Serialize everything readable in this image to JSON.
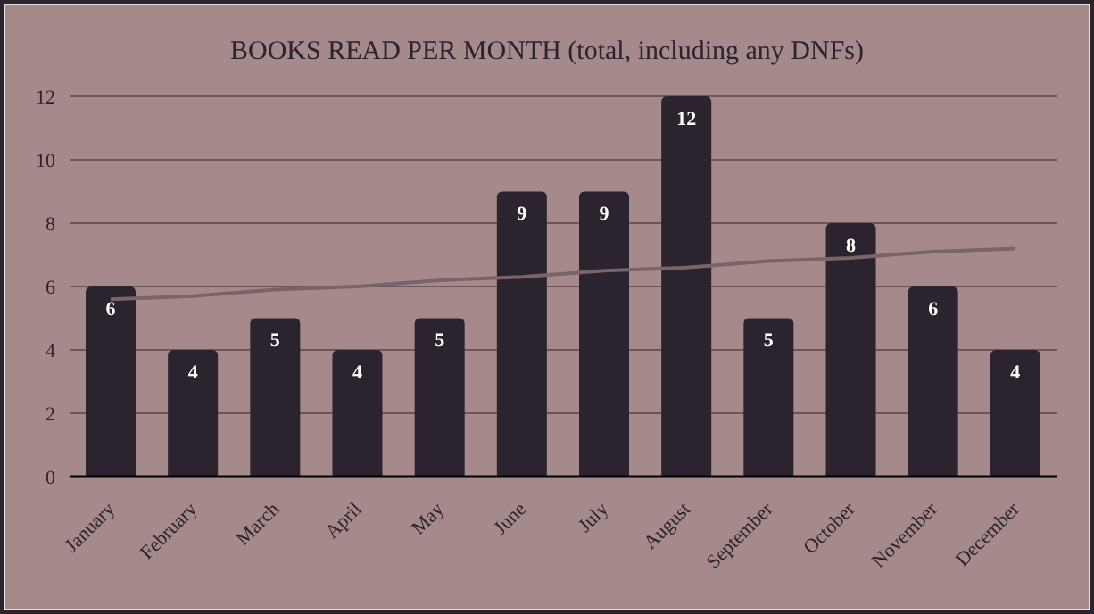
{
  "chart_data": {
    "type": "bar",
    "title": "BOOKS READ PER MONTH (total, including any DNFs)",
    "categories": [
      "January",
      "February",
      "March",
      "April",
      "May",
      "June",
      "July",
      "August",
      "September",
      "October",
      "November",
      "December"
    ],
    "series": [
      {
        "color": "#2b232d",
        "values": [
          6,
          4,
          5,
          4,
          5,
          9,
          9,
          12,
          5,
          8,
          6,
          4
        ],
        "value_labels": [
          "6",
          "4",
          "5",
          "4",
          "5",
          "9",
          "9",
          "12",
          "5",
          "8",
          "6",
          "4"
        ]
      },
      {
        "type": "line",
        "color": "#7a6468",
        "values": [
          5.6,
          5.7,
          5.9,
          6.0,
          6.2,
          6.3,
          6.5,
          6.6,
          6.8,
          6.9,
          7.1,
          7.2
        ],
        "line_style": "solid",
        "marker": "none"
      }
    ],
    "ylim": [
      0,
      12
    ],
    "yticks": [
      0,
      2,
      4,
      6,
      8,
      10,
      12
    ],
    "grid": "y",
    "legend": false
  }
}
